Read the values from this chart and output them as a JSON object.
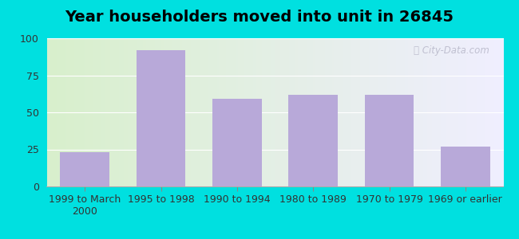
{
  "title": "Year householders moved into unit in 26845",
  "categories": [
    "1999 to March\n2000",
    "1995 to 1998",
    "1990 to 1994",
    "1980 to 1989",
    "1970 to 1979",
    "1969 or earlier"
  ],
  "values": [
    23,
    92,
    59,
    62,
    62,
    27
  ],
  "bar_color": "#b8a9d9",
  "bar_width": 0.65,
  "ylim": [
    0,
    100
  ],
  "yticks": [
    0,
    25,
    50,
    75,
    100
  ],
  "background_outer": "#00e0e0",
  "bg_left_color": "#d8f0cc",
  "bg_right_color": "#f0eeff",
  "title_fontsize": 14,
  "tick_fontsize": 9,
  "watermark": "City-Data.com",
  "grid_color": "#e0e0e0"
}
